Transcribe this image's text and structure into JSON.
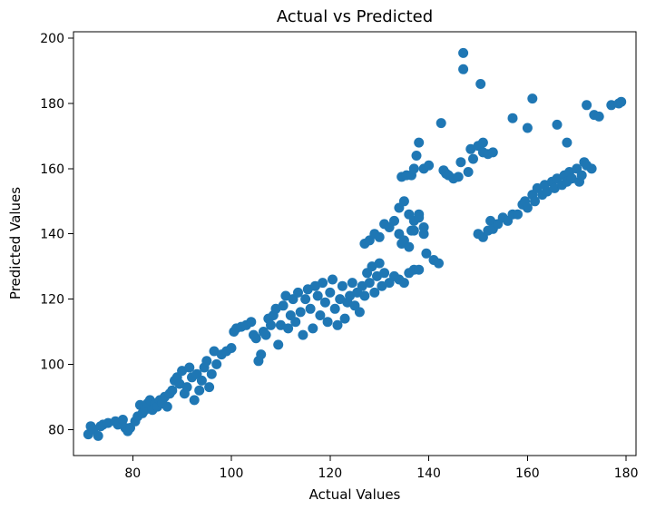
{
  "chart_data": {
    "type": "scatter",
    "title": "Actual vs Predicted",
    "xlabel": "Actual Values",
    "ylabel": "Predicted Values",
    "xlim": [
      68,
      182
    ],
    "ylim": [
      72,
      202
    ],
    "xticks": [
      80,
      100,
      120,
      140,
      160,
      180
    ],
    "yticks": [
      80,
      100,
      120,
      140,
      160,
      180,
      200
    ],
    "grid": false,
    "marker_color": "#1f77b4",
    "points": [
      [
        71,
        78.5
      ],
      [
        71.5,
        81
      ],
      [
        72,
        80
      ],
      [
        73,
        78
      ],
      [
        73.5,
        81
      ],
      [
        74,
        81.5
      ],
      [
        75,
        82
      ],
      [
        76.5,
        82.5
      ],
      [
        77,
        81.5
      ],
      [
        78,
        83
      ],
      [
        78.5,
        80.5
      ],
      [
        79,
        79.5
      ],
      [
        79.5,
        80.5
      ],
      [
        80.5,
        82.5
      ],
      [
        81,
        84
      ],
      [
        81.5,
        87.5
      ],
      [
        82,
        85
      ],
      [
        82.5,
        86
      ],
      [
        83,
        88
      ],
      [
        83.5,
        89
      ],
      [
        84,
        86
      ],
      [
        84.5,
        88
      ],
      [
        85,
        87
      ],
      [
        85.5,
        89
      ],
      [
        86,
        88
      ],
      [
        86.5,
        90
      ],
      [
        87,
        87
      ],
      [
        87.5,
        91
      ],
      [
        88,
        92
      ],
      [
        88.5,
        95
      ],
      [
        89,
        96
      ],
      [
        89.5,
        94
      ],
      [
        90,
        98
      ],
      [
        90.5,
        91
      ],
      [
        91,
        93
      ],
      [
        91.5,
        99
      ],
      [
        92,
        96
      ],
      [
        92.5,
        89
      ],
      [
        93,
        97
      ],
      [
        93.5,
        92
      ],
      [
        94,
        95
      ],
      [
        94.5,
        99
      ],
      [
        95,
        101
      ],
      [
        95.5,
        93
      ],
      [
        96,
        97
      ],
      [
        96.5,
        104
      ],
      [
        97,
        100
      ],
      [
        98,
        103
      ],
      [
        99,
        104
      ],
      [
        100,
        105
      ],
      [
        100.5,
        110
      ],
      [
        101,
        111
      ],
      [
        102,
        111.5
      ],
      [
        103,
        112
      ],
      [
        104,
        113
      ],
      [
        104.5,
        109
      ],
      [
        105,
        108
      ],
      [
        105.5,
        101
      ],
      [
        106,
        103
      ],
      [
        106.5,
        110
      ],
      [
        107,
        109
      ],
      [
        107.5,
        114
      ],
      [
        108,
        112
      ],
      [
        108.5,
        115
      ],
      [
        109,
        117
      ],
      [
        109.5,
        106
      ],
      [
        110,
        112
      ],
      [
        110.5,
        118
      ],
      [
        111,
        121
      ],
      [
        111.5,
        111
      ],
      [
        112,
        115
      ],
      [
        112.5,
        120
      ],
      [
        113,
        113
      ],
      [
        113.5,
        122
      ],
      [
        114,
        116
      ],
      [
        114.5,
        109
      ],
      [
        115,
        120
      ],
      [
        115.5,
        123
      ],
      [
        116,
        117
      ],
      [
        116.5,
        111
      ],
      [
        117,
        124
      ],
      [
        117.5,
        121
      ],
      [
        118,
        115
      ],
      [
        118.5,
        125
      ],
      [
        119,
        119
      ],
      [
        119.5,
        113
      ],
      [
        120,
        122
      ],
      [
        120.5,
        126
      ],
      [
        121,
        117
      ],
      [
        121.5,
        112
      ],
      [
        122,
        120
      ],
      [
        122.5,
        124
      ],
      [
        123,
        114
      ],
      [
        123.5,
        119
      ],
      [
        124,
        121
      ],
      [
        124.5,
        125
      ],
      [
        125,
        118
      ],
      [
        125.5,
        122
      ],
      [
        126,
        116
      ],
      [
        126.5,
        124
      ],
      [
        127,
        121
      ],
      [
        127.5,
        128
      ],
      [
        128,
        125
      ],
      [
        128.5,
        130
      ],
      [
        129,
        122
      ],
      [
        129.5,
        127
      ],
      [
        130,
        131
      ],
      [
        130.5,
        124
      ],
      [
        131,
        128
      ],
      [
        132,
        125
      ],
      [
        133,
        127
      ],
      [
        134,
        126
      ],
      [
        135,
        125
      ],
      [
        136,
        128
      ],
      [
        137,
        129
      ],
      [
        138,
        129
      ],
      [
        141,
        132
      ],
      [
        142,
        131
      ],
      [
        127,
        137
      ],
      [
        128,
        138
      ],
      [
        129,
        140
      ],
      [
        130,
        139
      ],
      [
        131,
        143
      ],
      [
        132,
        142
      ],
      [
        133,
        144
      ],
      [
        134,
        148
      ],
      [
        135,
        150
      ],
      [
        136,
        146
      ],
      [
        136.5,
        141
      ],
      [
        137,
        144
      ],
      [
        138,
        146
      ],
      [
        139,
        140
      ],
      [
        139.5,
        134
      ],
      [
        134,
        140
      ],
      [
        134.5,
        137
      ],
      [
        135,
        138
      ],
      [
        136,
        136
      ],
      [
        137,
        141
      ],
      [
        138,
        145
      ],
      [
        139,
        142
      ],
      [
        134.5,
        157.5
      ],
      [
        135.5,
        158
      ],
      [
        136.5,
        158
      ],
      [
        137,
        160
      ],
      [
        137.5,
        164
      ],
      [
        138,
        168
      ],
      [
        139,
        160
      ],
      [
        140,
        161
      ],
      [
        142.5,
        174
      ],
      [
        143,
        159.5
      ],
      [
        143.5,
        158.5
      ],
      [
        144,
        158
      ],
      [
        145,
        157
      ],
      [
        146,
        157.5
      ],
      [
        146.5,
        162
      ],
      [
        147,
        195.5
      ],
      [
        147,
        190.5
      ],
      [
        148,
        159
      ],
      [
        148.5,
        166
      ],
      [
        149,
        163
      ],
      [
        150,
        167
      ],
      [
        150.5,
        186
      ],
      [
        151,
        168
      ],
      [
        151,
        165
      ],
      [
        152,
        164.5
      ],
      [
        153,
        165
      ],
      [
        150,
        140
      ],
      [
        151,
        139
      ],
      [
        152,
        141
      ],
      [
        152.5,
        144
      ],
      [
        153,
        141.5
      ],
      [
        154,
        143
      ],
      [
        155,
        145
      ],
      [
        156,
        144
      ],
      [
        157,
        146
      ],
      [
        158,
        146
      ],
      [
        159,
        149
      ],
      [
        159.5,
        150
      ],
      [
        160,
        148
      ],
      [
        161,
        152
      ],
      [
        161.5,
        150
      ],
      [
        162,
        154
      ],
      [
        163,
        152
      ],
      [
        163.5,
        155
      ],
      [
        164,
        153
      ],
      [
        165,
        156
      ],
      [
        165.5,
        154
      ],
      [
        166,
        157
      ],
      [
        167,
        155
      ],
      [
        167.5,
        158
      ],
      [
        168,
        156
      ],
      [
        168.5,
        159
      ],
      [
        169,
        157
      ],
      [
        170,
        160
      ],
      [
        170.5,
        156
      ],
      [
        171,
        158
      ],
      [
        171.5,
        162
      ],
      [
        172,
        161
      ],
      [
        173,
        160
      ],
      [
        157,
        175.5
      ],
      [
        160,
        172.5
      ],
      [
        161,
        181.5
      ],
      [
        166,
        173.5
      ],
      [
        168,
        168
      ],
      [
        172,
        179.5
      ],
      [
        173.5,
        176.5
      ],
      [
        174.5,
        176
      ],
      [
        177,
        179.5
      ],
      [
        178.5,
        180
      ],
      [
        179,
        180.5
      ]
    ]
  }
}
